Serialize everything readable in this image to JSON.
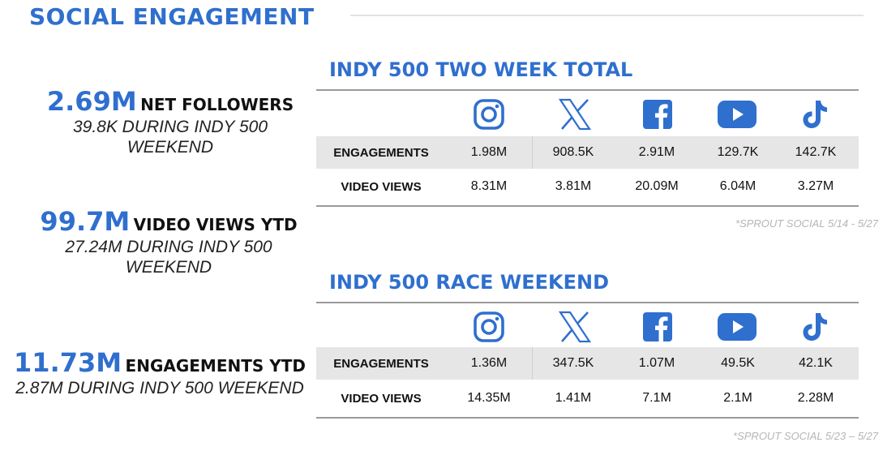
{
  "page": {
    "title": "SOCIAL ENGAGEMENT"
  },
  "stats": [
    {
      "value": "2.69M",
      "label": "NET FOLLOWERS",
      "sub1": "39.8K DURING INDY 500",
      "sub2": "WEEKEND"
    },
    {
      "value": "99.7M",
      "label": "VIDEO VIEWS YTD",
      "sub1": "27.24M DURING INDY 500",
      "sub2": "WEEKEND"
    },
    {
      "value": "11.73M",
      "label": "ENGAGEMENTS YTD",
      "sub1": "2.87M DURING INDY 500 WEEKEND",
      "sub2": ""
    }
  ],
  "platform_icons": [
    "instagram-icon",
    "x-icon",
    "facebook-icon",
    "youtube-icon",
    "tiktok-icon"
  ],
  "colors": {
    "accent": "#2f6fce",
    "shade": "#e6e6e6",
    "source": "#b5b5b5"
  },
  "tables": [
    {
      "title": "INDY 500 TWO WEEK TOTAL",
      "rows": [
        {
          "label": "ENGAGEMENTS",
          "values": [
            "1.98M",
            "908.5K",
            "2.91M",
            "129.7K",
            "142.7K"
          ]
        },
        {
          "label": "VIDEO VIEWS",
          "values": [
            "8.31M",
            "3.81M",
            "20.09M",
            "6.04M",
            "3.27M"
          ]
        }
      ],
      "source": "*SPROUT SOCIAL 5/14 - 5/27"
    },
    {
      "title": "INDY 500 RACE WEEKEND",
      "rows": [
        {
          "label": "ENGAGEMENTS",
          "values": [
            "1.36M",
            "347.5K",
            "1.07M",
            "49.5K",
            "42.1K"
          ]
        },
        {
          "label": "VIDEO VIEWS",
          "values": [
            "14.35M",
            "1.41M",
            "7.1M",
            "2.1M",
            "2.28M"
          ]
        }
      ],
      "source": "*SPROUT SOCIAL 5/23 – 5/27"
    }
  ]
}
